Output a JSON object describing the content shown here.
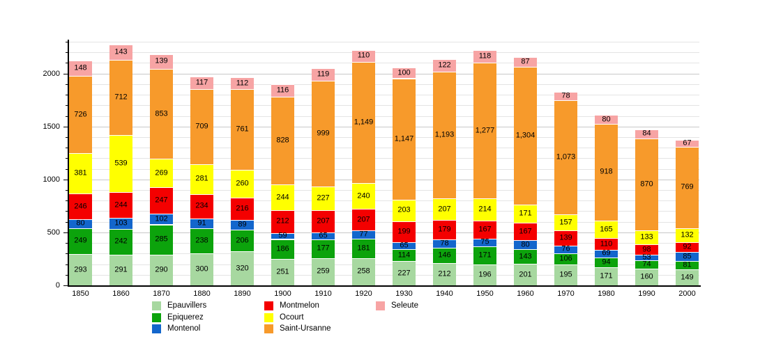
{
  "chart_data": {
    "type": "bar",
    "stacked": true,
    "title": "",
    "xlabel": "",
    "ylabel": "",
    "categories": [
      "1850",
      "1860",
      "1870",
      "1880",
      "1890",
      "1900",
      "1910",
      "1920",
      "1930",
      "1940",
      "1950",
      "1960",
      "1970",
      "1980",
      "1990",
      "2000"
    ],
    "series": [
      {
        "name": "Epauvillers",
        "color": "#a7d8a0",
        "values": [
          293,
          291,
          290,
          300,
          320,
          251,
          259,
          258,
          227,
          212,
          196,
          201,
          195,
          171,
          160,
          149
        ]
      },
      {
        "name": "Epiquerez",
        "color": "#0ca30c",
        "values": [
          249,
          242,
          285,
          238,
          206,
          186,
          177,
          181,
          114,
          146,
          171,
          143,
          106,
          94,
          74,
          81
        ]
      },
      {
        "name": "Montenol",
        "color": "#1366cc",
        "values": [
          80,
          103,
          102,
          91,
          89,
          59,
          65,
          77,
          65,
          78,
          75,
          80,
          76,
          69,
          53,
          85
        ]
      },
      {
        "name": "Montmelon",
        "color": "#f40000",
        "values": [
          246,
          244,
          247,
          234,
          216,
          212,
          207,
          207,
          199,
          179,
          167,
          167,
          139,
          110,
          98,
          92
        ]
      },
      {
        "name": "Ocourt",
        "color": "#ffff00",
        "values": [
          381,
          539,
          269,
          281,
          260,
          244,
          227,
          240,
          203,
          207,
          214,
          171,
          157,
          165,
          133,
          132
        ]
      },
      {
        "name": "Saint-Ursanne",
        "color": "#f79a2b",
        "values": [
          726,
          712,
          853,
          709,
          761,
          828,
          999,
          1149,
          1147,
          1193,
          1277,
          1304,
          1073,
          918,
          870,
          769
        ]
      },
      {
        "name": "Seleute",
        "color": "#f7a4a4",
        "values": [
          148,
          143,
          139,
          117,
          112,
          116,
          119,
          110,
          100,
          122,
          118,
          87,
          78,
          80,
          84,
          67
        ]
      }
    ],
    "ylim": [
      0,
      2300
    ],
    "ytick_minor_interval": 100,
    "ytick_major_interval": 500,
    "ytick_labels": [
      "0",
      "500",
      "1000",
      "1500",
      "2000"
    ],
    "grid": true,
    "grid_minor_color": "#e4e4e4",
    "grid_major_color": "#c8c8c8",
    "axis_color": "#000000",
    "label_color": "#000000",
    "legend_position": "bottom",
    "legend_entries": [
      "Epauvillers",
      "Epiquerez",
      "Montenol",
      "Montmelon",
      "Ocourt",
      "Saint-Ursanne",
      "Seleute"
    ]
  }
}
